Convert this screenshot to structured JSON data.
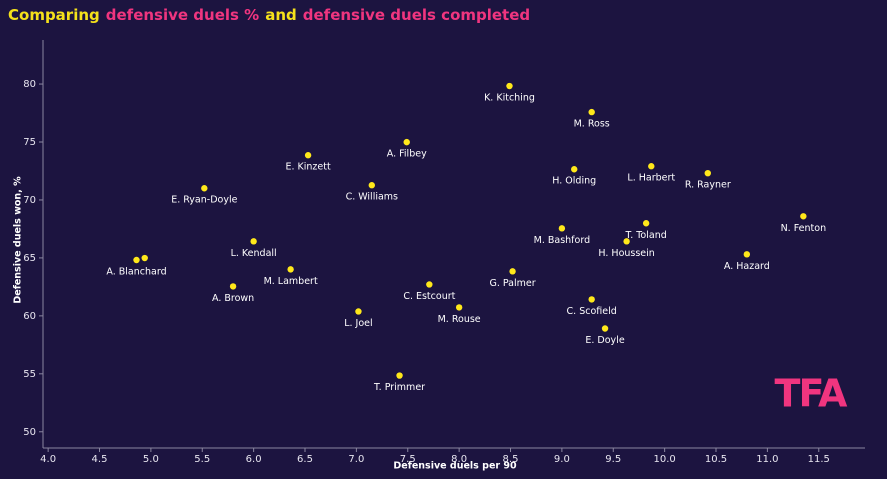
{
  "chart_data": {
    "type": "scatter",
    "title_parts": [
      {
        "text": "Comparing",
        "color": "#f5e11b"
      },
      {
        "text": "defensive duels %",
        "color": "#f0357f"
      },
      {
        "text": "and",
        "color": "#f5e11b"
      },
      {
        "text": "defensive duels completed",
        "color": "#f0357f"
      }
    ],
    "x_label": "Defensive duels per 90",
    "y_label": "Defensive duels won, %",
    "logo": "TFA",
    "color": "#ffe81a",
    "xlim": [
      3.95,
      11.95
    ],
    "ylim": [
      48.6,
      83.8
    ],
    "xticks": [
      {
        "value": 4,
        "label": "4.0"
      },
      4.5,
      {
        "value": 5,
        "label": "5.0"
      },
      5.5,
      {
        "value": 6,
        "label": "6.0"
      },
      6.5,
      {
        "value": 7,
        "label": "7.0"
      },
      7.5,
      {
        "value": 8,
        "label": "8.0"
      },
      8.5,
      {
        "value": 9,
        "label": "9.0"
      },
      9.5,
      {
        "value": 10,
        "label": "10.0"
      },
      10.5,
      {
        "value": 11,
        "label": "11.0"
      },
      11.5
    ],
    "yticks": [
      50,
      55,
      60,
      65,
      70,
      75,
      80
    ],
    "labels": [
      "K. Kitching",
      "M. Ross",
      "A. Filbey",
      "E. Kinzett",
      "H. Olding",
      "L. Harbert",
      "R. Rayner",
      "C. Williams",
      "E. Ryan-Doyle",
      "N. Fenton",
      "T. Toland",
      "M. Bashford",
      "L. Kendall",
      "H. Houssein",
      "A. Hazard",
      "A. Blanchard",
      null,
      "M. Lambert",
      "G. Palmer",
      "C. Estcourt",
      "A. Brown",
      "M. Rouse",
      "C. Scofield",
      "L. Joel",
      "E. Doyle",
      "T. Primmer"
    ],
    "x": [
      8.49,
      9.29,
      7.49,
      6.53,
      9.12,
      9.87,
      10.42,
      7.15,
      5.52,
      11.35,
      9.82,
      9.0,
      6.0,
      9.63,
      10.8,
      4.86,
      4.94,
      6.36,
      8.52,
      7.71,
      5.8,
      8.0,
      9.29,
      7.02,
      9.42,
      7.42
    ],
    "y": [
      79.83,
      77.58,
      74.99,
      73.86,
      72.65,
      72.91,
      72.31,
      71.27,
      71.01,
      68.59,
      67.99,
      67.55,
      66.43,
      66.43,
      65.31,
      64.82,
      64.99,
      64.01,
      63.84,
      62.71,
      62.54,
      60.73,
      61.42,
      60.38,
      58.91,
      54.85
    ]
  }
}
